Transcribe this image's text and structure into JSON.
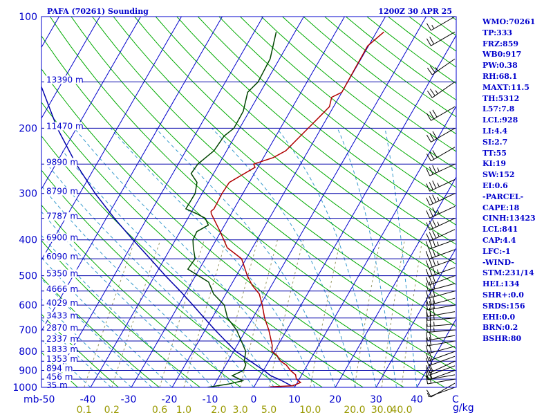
{
  "header": {
    "station": "PAFA (70261) Sounding",
    "time": "1200Z 30 APR 25"
  },
  "colors": {
    "axis": "#0000cc",
    "isobar": "#0000aa",
    "isotherm": "#0000cc",
    "dry_adiabat": "#00aa00",
    "moist_adiabat": "#3399cc",
    "mixing_ratio": "#999966",
    "temperature": "#b00000",
    "dewpoint": "#004400",
    "parcel": "#0000aa",
    "wind": "#000000"
  },
  "indices": [
    "WMO:70261",
    "TP:333",
    "FRZ:859",
    "WB0:917",
    "PW:0.38",
    "RH:68.1",
    "MAXT:11.5",
    "TH:5312",
    "L57:7.8",
    "LCL:928",
    "LI:4.4",
    "SI:2.7",
    "TT:55",
    "KI:19",
    "SW:152",
    "EI:0.6",
    "-PARCEL-",
    "CAPE:18",
    "CINH:13423",
    "LCL:841",
    "CAP:4.4",
    "LFC:-1",
    "-WIND-",
    "STM:231/14",
    "HEL:134",
    "SHR+:0.0",
    "SRDS:156",
    "EHI:0.0",
    "BRN:0.2",
    "BSHR:80"
  ],
  "chart_data": {
    "type": "skew-t",
    "title": "PAFA (70261) Sounding",
    "subtitle": "1200Z 30 APR 25",
    "y_unit": "mb",
    "x_unit": "C",
    "mixing_ratio_unit": "g/kg",
    "pressure_range": [
      1000,
      100
    ],
    "temperature_range": [
      -50,
      50
    ],
    "pressure_ticks": [
      100,
      200,
      300,
      400,
      500,
      600,
      700,
      800,
      900,
      1000
    ],
    "temperature_ticks": [
      -50,
      -40,
      -30,
      -20,
      -10,
      0,
      10,
      20,
      30,
      40
    ],
    "mixing_ratio_ticks": [
      "0.1",
      "0.2",
      "0.6",
      "1.0",
      "2.0",
      "3.0",
      "5.0",
      "10.0",
      "20.0",
      "30.0",
      "40.0"
    ],
    "heights": [
      {
        "label": "13390 m",
        "p": 150
      },
      {
        "label": "11470 m",
        "p": 200
      },
      {
        "label": "9890 m",
        "p": 250
      },
      {
        "label": "8790 m",
        "p": 300
      },
      {
        "label": "7787 m",
        "p": 350
      },
      {
        "label": "6900 m",
        "p": 400
      },
      {
        "label": "6090 m",
        "p": 450
      },
      {
        "label": "5350 m",
        "p": 500
      },
      {
        "label": "4666 m",
        "p": 550
      },
      {
        "label": "4029 m",
        "p": 600
      },
      {
        "label": "3433 m",
        "p": 650
      },
      {
        "label": "2870 m",
        "p": 700
      },
      {
        "label": "2337 m",
        "p": 750
      },
      {
        "label": "1833 m",
        "p": 800
      },
      {
        "label": "1353 m",
        "p": 850
      },
      {
        "label": "894 m",
        "p": 900
      },
      {
        "label": "456 m",
        "p": 950
      },
      {
        "label": "35 m",
        "p": 1000
      }
    ],
    "series": [
      {
        "key": "temperature",
        "points": [
          [
            997,
            4
          ],
          [
            990,
            9.4
          ],
          [
            970,
            10.8
          ],
          [
            950,
            9.3
          ],
          [
            925,
            8.5
          ],
          [
            900,
            6.6
          ],
          [
            870,
            4.8
          ],
          [
            850,
            2.9
          ],
          [
            820,
            1.2
          ],
          [
            800,
            -0.6
          ],
          [
            770,
            -1.4
          ],
          [
            700,
            -4.4
          ],
          [
            650,
            -7.1
          ],
          [
            600,
            -9.5
          ],
          [
            560,
            -11.8
          ],
          [
            530,
            -14.8
          ],
          [
            500,
            -17.3
          ],
          [
            450,
            -21.1
          ],
          [
            420,
            -26.2
          ],
          [
            380,
            -30.2
          ],
          [
            340,
            -34.9
          ],
          [
            335,
            -35.3
          ],
          [
            330,
            -34.9
          ],
          [
            300,
            -35.1
          ],
          [
            280,
            -34.9
          ],
          [
            255,
            -30.7
          ],
          [
            250,
            -31.5
          ],
          [
            240,
            -27.6
          ],
          [
            230,
            -25.5
          ],
          [
            200,
            -23.2
          ],
          [
            185,
            -21.9
          ],
          [
            175,
            -21.0
          ],
          [
            165,
            -21.8
          ],
          [
            160,
            -20.0
          ],
          [
            140,
            -20.1
          ],
          [
            120,
            -20.2
          ],
          [
            110,
            -18.2
          ]
        ]
      },
      {
        "key": "dewpoint",
        "points": [
          [
            1000,
            -11.3
          ],
          [
            980,
            -6.7
          ],
          [
            960,
            -3.6
          ],
          [
            930,
            -6.9
          ],
          [
            900,
            -4.9
          ],
          [
            870,
            -5.1
          ],
          [
            850,
            -6.0
          ],
          [
            820,
            -6.6
          ],
          [
            800,
            -7.0
          ],
          [
            700,
            -12.3
          ],
          [
            650,
            -16.2
          ],
          [
            600,
            -18.8
          ],
          [
            560,
            -23.0
          ],
          [
            520,
            -25.9
          ],
          [
            480,
            -32.8
          ],
          [
            450,
            -32.5
          ],
          [
            420,
            -34.5
          ],
          [
            400,
            -35.7
          ],
          [
            380,
            -35.9
          ],
          [
            365,
            -34.0
          ],
          [
            350,
            -35.7
          ],
          [
            340,
            -38.5
          ],
          [
            330,
            -41.8
          ],
          [
            300,
            -41.7
          ],
          [
            280,
            -42.8
          ],
          [
            265,
            -45.5
          ],
          [
            255,
            -45.3
          ],
          [
            250,
            -45.2
          ],
          [
            230,
            -43.1
          ],
          [
            210,
            -42.7
          ],
          [
            200,
            -41.4
          ],
          [
            180,
            -41.5
          ],
          [
            160,
            -43.1
          ],
          [
            150,
            -42.0
          ],
          [
            130,
            -42.3
          ],
          [
            110,
            -44.6
          ]
        ]
      },
      {
        "key": "parcel",
        "points": [
          [
            990,
            9.0
          ],
          [
            960,
            6.0
          ],
          [
            930,
            2.5
          ],
          [
            900,
            0.1
          ],
          [
            850,
            -4.5
          ],
          [
            800,
            -9.4
          ],
          [
            750,
            -13.4
          ],
          [
            700,
            -17.6
          ],
          [
            650,
            -21.9
          ],
          [
            600,
            -26.5
          ],
          [
            550,
            -31.6
          ],
          [
            500,
            -37.4
          ],
          [
            450,
            -43.5
          ],
          [
            400,
            -50.4
          ],
          [
            350,
            -58.0
          ],
          [
            300,
            -66.2
          ],
          [
            250,
            -75.0
          ],
          [
            200,
            -84.7
          ],
          [
            150,
            -95.6
          ],
          [
            120,
            -104.2
          ],
          [
            100,
            -111.0
          ]
        ]
      }
    ],
    "winds": [
      {
        "p": 1000,
        "dir": 250,
        "spd": 5
      },
      {
        "p": 975,
        "dir": 240,
        "spd": 10
      },
      {
        "p": 950,
        "dir": 260,
        "spd": 15
      },
      {
        "p": 925,
        "dir": 260,
        "spd": 15
      },
      {
        "p": 900,
        "dir": 250,
        "spd": 20
      },
      {
        "p": 875,
        "dir": 250,
        "spd": 20
      },
      {
        "p": 850,
        "dir": 245,
        "spd": 20
      },
      {
        "p": 825,
        "dir": 250,
        "spd": 20
      },
      {
        "p": 800,
        "dir": 250,
        "spd": 20
      },
      {
        "p": 775,
        "dir": 255,
        "spd": 20
      },
      {
        "p": 750,
        "dir": 260,
        "spd": 20
      },
      {
        "p": 725,
        "dir": 260,
        "spd": 20
      },
      {
        "p": 700,
        "dir": 265,
        "spd": 25
      },
      {
        "p": 675,
        "dir": 265,
        "spd": 25
      },
      {
        "p": 650,
        "dir": 265,
        "spd": 25
      },
      {
        "p": 625,
        "dir": 260,
        "spd": 30
      },
      {
        "p": 600,
        "dir": 260,
        "spd": 30
      },
      {
        "p": 575,
        "dir": 255,
        "spd": 30
      },
      {
        "p": 550,
        "dir": 255,
        "spd": 30
      },
      {
        "p": 525,
        "dir": 255,
        "spd": 30
      },
      {
        "p": 500,
        "dir": 250,
        "spd": 30
      },
      {
        "p": 475,
        "dir": 250,
        "spd": 35
      },
      {
        "p": 450,
        "dir": 250,
        "spd": 35
      },
      {
        "p": 425,
        "dir": 250,
        "spd": 35
      },
      {
        "p": 400,
        "dir": 250,
        "spd": 35
      },
      {
        "p": 375,
        "dir": 245,
        "spd": 35
      },
      {
        "p": 350,
        "dir": 245,
        "spd": 35
      },
      {
        "p": 325,
        "dir": 245,
        "spd": 35
      },
      {
        "p": 300,
        "dir": 245,
        "spd": 35
      },
      {
        "p": 275,
        "dir": 245,
        "spd": 35
      },
      {
        "p": 250,
        "dir": 245,
        "spd": 35
      },
      {
        "p": 225,
        "dir": 240,
        "spd": 30
      },
      {
        "p": 200,
        "dir": 240,
        "spd": 30
      },
      {
        "p": 175,
        "dir": 240,
        "spd": 30
      },
      {
        "p": 150,
        "dir": 235,
        "spd": 25
      },
      {
        "p": 130,
        "dir": 235,
        "spd": 25
      },
      {
        "p": 110,
        "dir": 240,
        "spd": 20
      },
      {
        "p": 100,
        "dir": 240,
        "spd": 15
      }
    ]
  }
}
